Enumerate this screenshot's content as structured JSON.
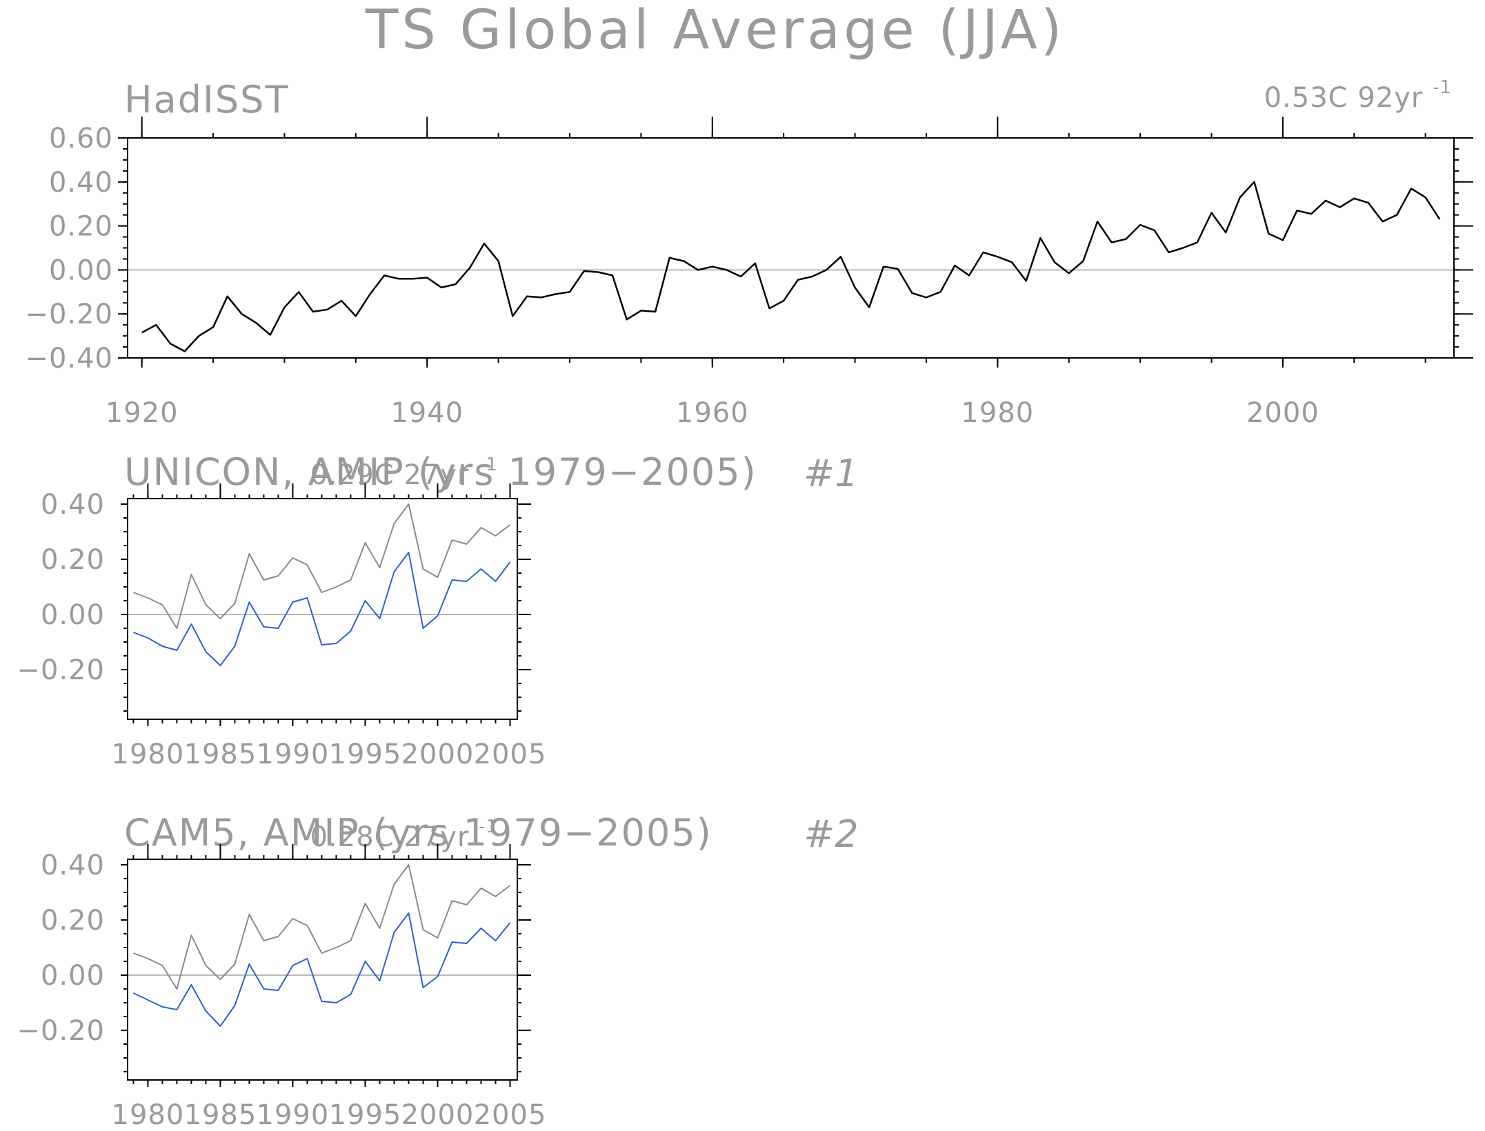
{
  "title": "TS Global Average (JJA)",
  "colors": {
    "obs": "#000000",
    "obs_overlay": "#8a8a8a",
    "model": "#2f5fd0",
    "text": "#9a9a9a",
    "zero_line": "#b8b8b8"
  },
  "chart_data": [
    {
      "type": "line",
      "title": "HadISST",
      "trend_label": "0.53C 92yr",
      "trend_exponent": "-1",
      "xlim": [
        1919,
        2012
      ],
      "ylim": [
        -0.4,
        0.6
      ],
      "x_ticks": [
        1920,
        1940,
        1960,
        1980,
        2000
      ],
      "y_ticks": [
        {
          "value": 0.6,
          "label": "0.60"
        },
        {
          "value": 0.4,
          "label": "0.40"
        },
        {
          "value": 0.2,
          "label": "0.20"
        },
        {
          "value": 0.0,
          "label": "0.00"
        },
        {
          "value": -0.2,
          "label": "−0.20"
        },
        {
          "value": -0.4,
          "label": "−0.40"
        }
      ],
      "zero_line": true,
      "series": [
        {
          "color": "#000000",
          "x": [
            1920,
            1921,
            1922,
            1923,
            1924,
            1925,
            1926,
            1927,
            1928,
            1929,
            1930,
            1931,
            1932,
            1933,
            1934,
            1935,
            1936,
            1937,
            1938,
            1939,
            1940,
            1941,
            1942,
            1943,
            1944,
            1945,
            1946,
            1947,
            1948,
            1949,
            1950,
            1951,
            1952,
            1953,
            1954,
            1955,
            1956,
            1957,
            1958,
            1959,
            1960,
            1961,
            1962,
            1963,
            1964,
            1965,
            1966,
            1967,
            1968,
            1969,
            1970,
            1971,
            1972,
            1973,
            1974,
            1975,
            1976,
            1977,
            1978,
            1979,
            1980,
            1981,
            1982,
            1983,
            1984,
            1985,
            1986,
            1987,
            1988,
            1989,
            1990,
            1991,
            1992,
            1993,
            1994,
            1995,
            1996,
            1997,
            1998,
            1999,
            2000,
            2001,
            2002,
            2003,
            2004,
            2005,
            2006,
            2007,
            2008,
            2009,
            2010,
            2011
          ],
          "y": [
            -0.285,
            -0.25,
            -0.335,
            -0.37,
            -0.3,
            -0.26,
            -0.12,
            -0.2,
            -0.24,
            -0.295,
            -0.17,
            -0.1,
            -0.19,
            -0.18,
            -0.14,
            -0.21,
            -0.11,
            -0.025,
            -0.04,
            -0.04,
            -0.035,
            -0.08,
            -0.065,
            0.01,
            0.12,
            0.04,
            -0.21,
            -0.12,
            -0.125,
            -0.11,
            -0.1,
            -0.005,
            -0.01,
            -0.025,
            -0.225,
            -0.185,
            -0.19,
            0.055,
            0.04,
            0.0,
            0.015,
            0.0,
            -0.03,
            0.03,
            -0.175,
            -0.14,
            -0.045,
            -0.03,
            0.0,
            0.06,
            -0.08,
            -0.17,
            0.015,
            0.005,
            -0.105,
            -0.125,
            -0.1,
            0.02,
            -0.025,
            0.08,
            0.06,
            0.035,
            -0.05,
            0.145,
            0.035,
            -0.015,
            0.04,
            0.22,
            0.125,
            0.14,
            0.205,
            0.18,
            0.08,
            0.1,
            0.125,
            0.26,
            0.17,
            0.33,
            0.4,
            0.165,
            0.135,
            0.27,
            0.255,
            0.315,
            0.285,
            0.325,
            0.305,
            0.22,
            0.25,
            0.37,
            0.33,
            0.23
          ]
        }
      ]
    },
    {
      "type": "line",
      "title": "UNICON, AMIP (yrs 1979−2005)",
      "trend_label": "0.29C 27yr",
      "trend_exponent": "-1",
      "panel_number": "#1",
      "xlim": [
        1978.6,
        2005.5
      ],
      "ylim": [
        -0.38,
        0.42
      ],
      "x_ticks": [
        1980,
        1985,
        1990,
        1995,
        2000,
        2005
      ],
      "y_ticks": [
        {
          "value": 0.4,
          "label": "0.40"
        },
        {
          "value": 0.2,
          "label": "0.20"
        },
        {
          "value": 0.0,
          "label": "0.00"
        },
        {
          "value": -0.2,
          "label": "−0.20"
        }
      ],
      "zero_line": true,
      "series": [
        {
          "name": "",
          "color": "#8a8a8a",
          "x": [
            1979,
            1980,
            1981,
            1982,
            1983,
            1984,
            1985,
            1986,
            1987,
            1988,
            1989,
            1990,
            1991,
            1992,
            1993,
            1994,
            1995,
            1996,
            1997,
            1998,
            1999,
            2000,
            2001,
            2002,
            2003,
            2004,
            2005
          ],
          "y": [
            0.08,
            0.06,
            0.035,
            -0.05,
            0.145,
            0.035,
            -0.015,
            0.04,
            0.22,
            0.125,
            0.14,
            0.205,
            0.18,
            0.08,
            0.1,
            0.125,
            0.26,
            0.17,
            0.33,
            0.4,
            0.165,
            0.135,
            0.27,
            0.255,
            0.315,
            0.285,
            0.325
          ]
        },
        {
          "name": "",
          "color": "#2f5fd0",
          "x": [
            1979,
            1980,
            1981,
            1982,
            1983,
            1984,
            1985,
            1986,
            1987,
            1988,
            1989,
            1990,
            1991,
            1992,
            1993,
            1994,
            1995,
            1996,
            1997,
            1998,
            1999,
            2000,
            2001,
            2002,
            2003,
            2004,
            2005
          ],
          "y": [
            -0.065,
            -0.085,
            -0.115,
            -0.13,
            -0.035,
            -0.135,
            -0.185,
            -0.115,
            0.045,
            -0.045,
            -0.05,
            0.045,
            0.06,
            -0.11,
            -0.105,
            -0.06,
            0.05,
            -0.015,
            0.155,
            0.225,
            -0.05,
            -0.005,
            0.125,
            0.12,
            0.165,
            0.12,
            0.19
          ]
        }
      ]
    },
    {
      "type": "line",
      "title": "CAM5, AMIP (yrs 1979−2005)",
      "trend_label": "0.28C 27yr",
      "trend_exponent": "-1",
      "panel_number": "#2",
      "xlim": [
        1978.6,
        2005.5
      ],
      "ylim": [
        -0.38,
        0.42
      ],
      "x_ticks": [
        1980,
        1985,
        1990,
        1995,
        2000,
        2005
      ],
      "y_ticks": [
        {
          "value": 0.4,
          "label": "0.40"
        },
        {
          "value": 0.2,
          "label": "0.20"
        },
        {
          "value": 0.0,
          "label": "0.00"
        },
        {
          "value": -0.2,
          "label": "−0.20"
        }
      ],
      "zero_line": true,
      "series": [
        {
          "name": "",
          "color": "#8a8a8a",
          "x": [
            1979,
            1980,
            1981,
            1982,
            1983,
            1984,
            1985,
            1986,
            1987,
            1988,
            1989,
            1990,
            1991,
            1992,
            1993,
            1994,
            1995,
            1996,
            1997,
            1998,
            1999,
            2000,
            2001,
            2002,
            2003,
            2004,
            2005
          ],
          "y": [
            0.08,
            0.06,
            0.035,
            -0.05,
            0.145,
            0.035,
            -0.015,
            0.04,
            0.22,
            0.125,
            0.14,
            0.205,
            0.18,
            0.08,
            0.1,
            0.125,
            0.26,
            0.17,
            0.33,
            0.4,
            0.165,
            0.135,
            0.27,
            0.255,
            0.315,
            0.285,
            0.325
          ]
        },
        {
          "name": "",
          "color": "#2f5fd0",
          "x": [
            1979,
            1980,
            1981,
            1982,
            1983,
            1984,
            1985,
            1986,
            1987,
            1988,
            1989,
            1990,
            1991,
            1992,
            1993,
            1994,
            1995,
            1996,
            1997,
            1998,
            1999,
            2000,
            2001,
            2002,
            2003,
            2004,
            2005
          ],
          "y": [
            -0.065,
            -0.09,
            -0.115,
            -0.125,
            -0.035,
            -0.13,
            -0.185,
            -0.11,
            0.04,
            -0.05,
            -0.055,
            0.035,
            0.06,
            -0.095,
            -0.1,
            -0.07,
            0.05,
            -0.02,
            0.155,
            0.225,
            -0.045,
            -0.005,
            0.12,
            0.115,
            0.17,
            0.125,
            0.19
          ]
        }
      ]
    }
  ]
}
